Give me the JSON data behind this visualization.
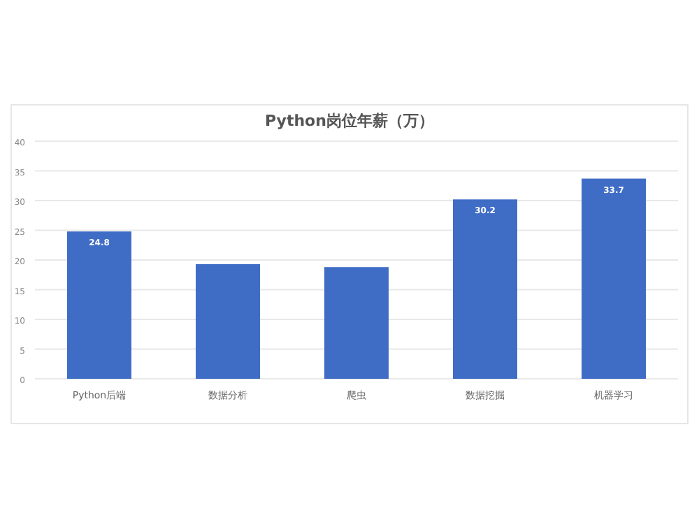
{
  "chart_data": {
    "type": "bar",
    "title": "Python岗位年薪（万）",
    "categories": [
      "Python后端",
      "数据分析",
      "爬虫",
      "数据挖掘",
      "机器学习"
    ],
    "values": [
      24.8,
      19.3,
      18.8,
      30.2,
      33.7
    ],
    "value_labels": [
      "24.8",
      null,
      null,
      "30.2",
      "33.7"
    ],
    "color": "#3f6dc6",
    "ylim": [
      0,
      40
    ],
    "yticks": [
      0,
      5,
      10,
      15,
      20,
      25,
      30,
      35,
      40
    ],
    "grid": "y"
  }
}
